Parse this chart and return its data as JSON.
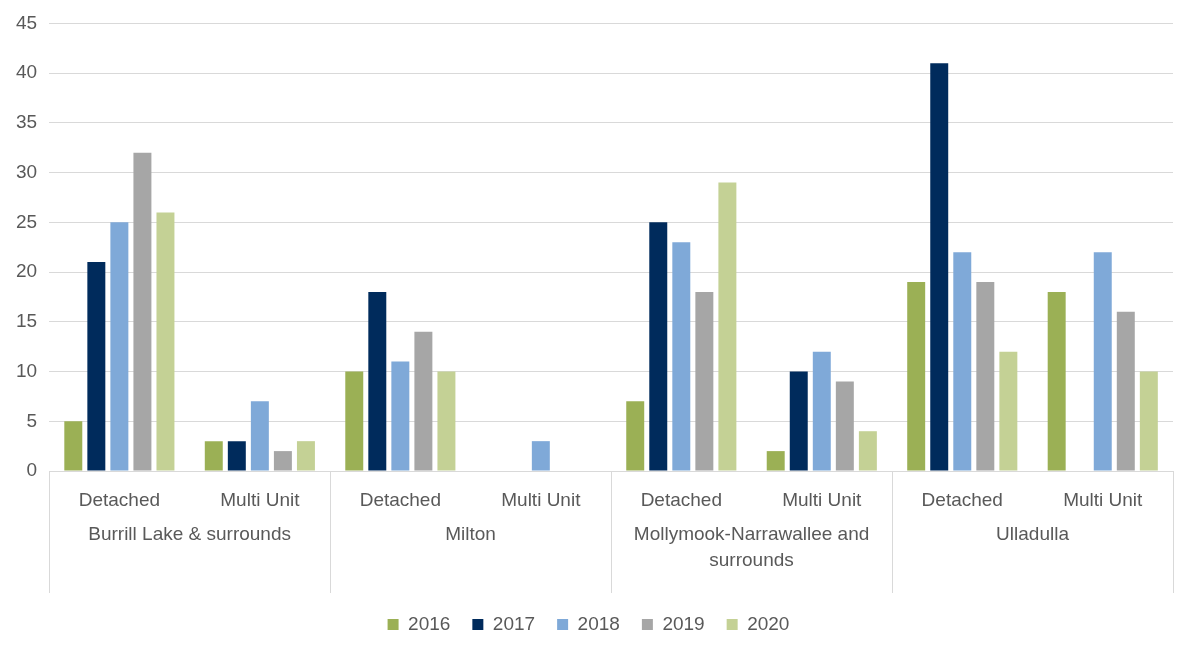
{
  "chart_data": {
    "type": "bar",
    "categories": [
      "Detached",
      "Multi Unit",
      "Detached",
      "Multi Unit",
      "Detached",
      "Multi Unit",
      "Detached",
      "Multi Unit"
    ],
    "annotations": [
      "Burrill Lake & surrounds",
      "Milton",
      "Mollymook-Narrawallee and surrounds",
      "Ulladulla"
    ],
    "series": [
      {
        "name": "2016",
        "color": "#9bb055",
        "values": [
          5,
          3,
          10,
          null,
          7,
          2,
          19,
          18
        ]
      },
      {
        "name": "2017",
        "color": "#002b5c",
        "values": [
          21,
          3,
          18,
          null,
          25,
          10,
          41,
          null
        ]
      },
      {
        "name": "2018",
        "color": "#7fa9d8",
        "values": [
          25,
          7,
          11,
          3,
          23,
          12,
          22,
          22
        ]
      },
      {
        "name": "2019",
        "color": "#a6a6a6",
        "values": [
          32,
          2,
          14,
          null,
          18,
          9,
          19,
          16
        ]
      },
      {
        "name": "2020",
        "color": "#c4d195",
        "values": [
          26,
          3,
          10,
          null,
          29,
          4,
          12,
          10
        ]
      }
    ],
    "ylim": [
      0,
      45
    ],
    "yticks": [
      0,
      5,
      10,
      15,
      20,
      25,
      30,
      35,
      40,
      45
    ],
    "grid": "y",
    "legend": "bottom"
  }
}
